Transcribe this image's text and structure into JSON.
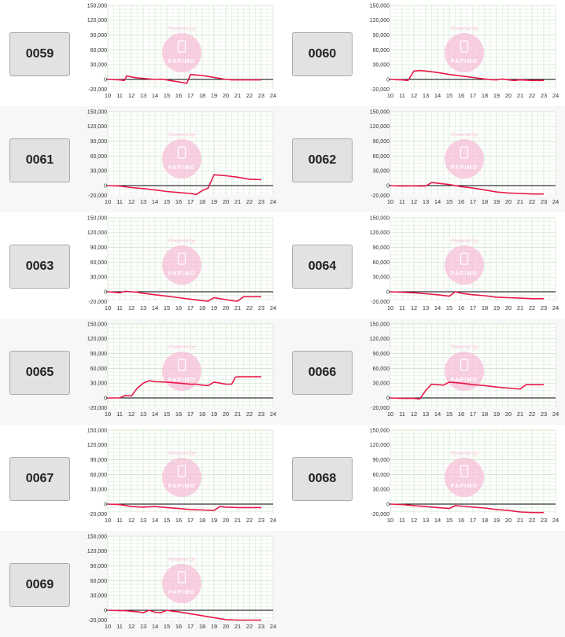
{
  "chart_data": {
    "type": "line",
    "y_ticks": [
      "150,000",
      "120,000",
      "90,000",
      "60,000",
      "30,000",
      "0",
      "-20,000"
    ],
    "ylim": [
      -20000,
      150000
    ],
    "x_ticks": [
      "10",
      "11",
      "12",
      "13",
      "14",
      "15",
      "16",
      "17",
      "18",
      "19",
      "20",
      "21",
      "22",
      "23",
      "24"
    ],
    "xlim": [
      10,
      24
    ],
    "grid": true,
    "watermark": {
      "top_text": "Powered by",
      "bottom_text": "PAPIMO",
      "icon": "phone-icon"
    },
    "colors": {
      "line": "#e8194a",
      "zero_line": "#000000",
      "grid": "#c8e2c3",
      "watermark": "#f7bfd8"
    },
    "charts": [
      {
        "machine": "0059",
        "x": [
          10,
          11,
          11.4,
          11.6,
          12,
          12.5,
          13,
          13.5,
          14,
          14.5,
          15,
          15.5,
          16,
          16.5,
          16.7,
          17,
          17.5,
          18,
          18.5,
          19,
          19.5,
          20,
          20.5,
          21,
          22,
          23
        ],
        "values": [
          0,
          -1000,
          -2000,
          7000,
          5000,
          3000,
          2000,
          1000,
          0,
          500,
          -1000,
          -3000,
          -5000,
          -7000,
          -8000,
          10000,
          9000,
          8000,
          6000,
          4000,
          2000,
          0,
          -1000,
          -1000,
          -1000,
          -1000
        ]
      },
      {
        "machine": "0060",
        "x": [
          10,
          11,
          11.5,
          12,
          12.5,
          13,
          14,
          15,
          16,
          17,
          18,
          18.5,
          19,
          19.5,
          20,
          20.5,
          21,
          22,
          23
        ],
        "values": [
          0,
          -1000,
          -2000,
          17000,
          18000,
          17000,
          14000,
          10000,
          7000,
          4000,
          1000,
          -500,
          -1000,
          1000,
          -1000,
          -2000,
          -1000,
          -2000,
          -2000
        ]
      },
      {
        "machine": "0061",
        "x": [
          10,
          11,
          12,
          13,
          14,
          15,
          16,
          17,
          17.5,
          18,
          18.5,
          19,
          19.5,
          20,
          21,
          22,
          23
        ],
        "values": [
          0,
          -1000,
          -4000,
          -6000,
          -9000,
          -12000,
          -14000,
          -16000,
          -18000,
          -10000,
          -5000,
          22000,
          21000,
          20000,
          17000,
          13000,
          12000
        ]
      },
      {
        "machine": "0062",
        "x": [
          10,
          11,
          12,
          12.5,
          13,
          13.5,
          14,
          15,
          16,
          17,
          18,
          19,
          20,
          21,
          22,
          23
        ],
        "values": [
          0,
          -1000,
          -500,
          -1000,
          -1000,
          6000,
          5000,
          2000,
          -2000,
          -5000,
          -9000,
          -13000,
          -15000,
          -16000,
          -17000,
          -17000
        ]
      },
      {
        "machine": "0063",
        "x": [
          10,
          10.5,
          11,
          11.5,
          12,
          12.5,
          13,
          14,
          15,
          16,
          17,
          18,
          18.5,
          19,
          19.5,
          20,
          20.5,
          21,
          21.5,
          22,
          23
        ],
        "values": [
          0,
          -1000,
          -2000,
          1000,
          0,
          -1000,
          -3000,
          -6000,
          -9000,
          -12000,
          -15000,
          -18000,
          -19000,
          -12000,
          -14000,
          -16000,
          -18000,
          -19000,
          -10000,
          -10000,
          -10000
        ]
      },
      {
        "machine": "0064",
        "x": [
          10,
          11,
          12,
          13,
          14,
          15,
          15.5,
          16,
          17,
          18,
          19,
          20,
          21,
          22,
          23
        ],
        "values": [
          0,
          -1000,
          -2000,
          -4000,
          -6000,
          -9000,
          0,
          -3000,
          -6000,
          -8000,
          -11000,
          -12000,
          -13000,
          -14000,
          -14000
        ]
      },
      {
        "machine": "0065",
        "x": [
          10,
          11,
          11.5,
          12,
          12.5,
          13,
          13.5,
          14,
          15,
          16,
          17,
          17.5,
          18,
          18.5,
          19,
          19.5,
          20,
          20.5,
          20.8,
          21,
          22,
          23
        ],
        "values": [
          0,
          0,
          5000,
          4000,
          20000,
          30000,
          35000,
          33000,
          32000,
          30000,
          28000,
          28000,
          26000,
          25000,
          32000,
          30000,
          28000,
          28000,
          42000,
          43000,
          43000,
          43000
        ]
      },
      {
        "machine": "0066",
        "x": [
          10,
          11,
          12,
          12.5,
          13,
          13.5,
          14,
          14.5,
          15,
          15.5,
          16,
          17,
          18,
          19,
          20,
          21,
          21.5,
          22,
          23
        ],
        "values": [
          0,
          -1000,
          -1000,
          -2000,
          15000,
          28000,
          27000,
          26000,
          32000,
          31000,
          30000,
          27000,
          25000,
          22000,
          20000,
          18000,
          27000,
          27000,
          27000
        ]
      },
      {
        "machine": "0067",
        "x": [
          10,
          11,
          12,
          13,
          14,
          15,
          16,
          16.5,
          17,
          18,
          19,
          19.5,
          20,
          21,
          22,
          23
        ],
        "values": [
          0,
          -1000,
          -5000,
          -6000,
          -5000,
          -7000,
          -9000,
          -10000,
          -11000,
          -12000,
          -13000,
          -5000,
          -6000,
          -7000,
          -7000,
          -7000
        ]
      },
      {
        "machine": "0068",
        "x": [
          10,
          11,
          12,
          13,
          14,
          15,
          15.5,
          16,
          17,
          18,
          19,
          20,
          21,
          22,
          23
        ],
        "values": [
          0,
          -1000,
          -3000,
          -5000,
          -7000,
          -9000,
          -3000,
          -4000,
          -6000,
          -8000,
          -11000,
          -13000,
          -16000,
          -17000,
          -17000
        ]
      },
      {
        "machine": "0069",
        "x": [
          10,
          11,
          11.5,
          12,
          12.5,
          13,
          13.5,
          14,
          14.5,
          15,
          15.5,
          16,
          17,
          18,
          19,
          20,
          21,
          22,
          23
        ],
        "values": [
          0,
          -1000,
          -1000,
          -2000,
          -3000,
          -5000,
          0,
          -4000,
          -5000,
          0,
          -2000,
          -3000,
          -7000,
          -11000,
          -15000,
          -19000,
          -20000,
          -20000,
          -20000
        ]
      }
    ]
  }
}
